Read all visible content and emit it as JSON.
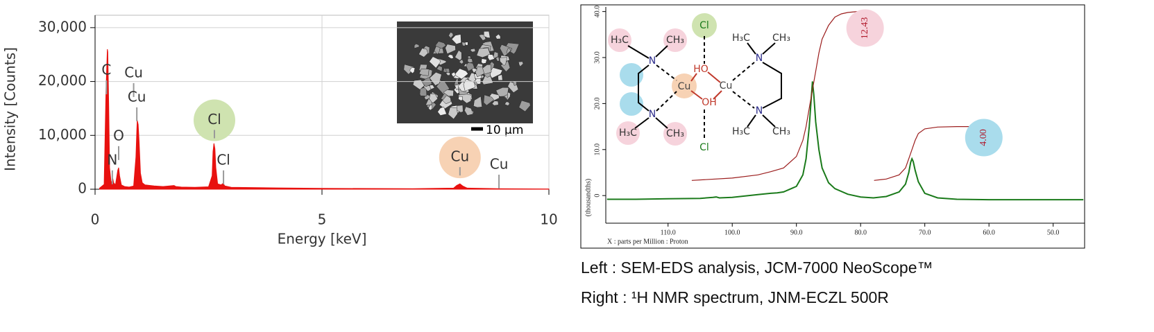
{
  "chart_data": [
    {
      "type": "area",
      "color": "#e8110f",
      "xlabel": "Energy [keV]",
      "ylabel": "Intensity [Counts]",
      "xlim": [
        0,
        10
      ],
      "ylim": [
        0,
        32300
      ],
      "xticks": [
        0,
        5,
        10
      ],
      "yticks": [
        0,
        {
          "value": 10000,
          "label": "10,000"
        },
        {
          "value": 20000,
          "label": "20,000"
        },
        {
          "value": 30000,
          "label": "30,000"
        }
      ],
      "grid": true,
      "x": [
        0.1,
        0.2,
        0.24,
        0.27,
        0.28,
        0.3,
        0.32,
        0.35,
        0.37,
        0.39,
        0.41,
        0.45,
        0.5,
        0.52,
        0.54,
        0.58,
        0.65,
        0.75,
        0.85,
        0.9,
        0.92,
        0.93,
        0.95,
        0.97,
        1.0,
        1.04,
        1.1,
        1.3,
        1.5,
        1.74,
        1.78,
        1.9,
        2.2,
        2.5,
        2.58,
        2.6,
        2.62,
        2.64,
        2.66,
        2.7,
        2.78,
        2.82,
        2.86,
        3.0,
        4.0,
        5.0,
        7.0,
        7.9,
        7.97,
        8.04,
        8.1,
        8.2,
        8.9,
        10.0
      ],
      "values": [
        200,
        900,
        18000,
        26000,
        25500,
        16000,
        4000,
        1500,
        1200,
        2000,
        1200,
        800,
        3500,
        4000,
        2500,
        800,
        500,
        400,
        600,
        6000,
        11000,
        12800,
        12000,
        9000,
        3000,
        1200,
        800,
        600,
        500,
        700,
        500,
        400,
        350,
        450,
        2500,
        7000,
        8500,
        7500,
        4000,
        1000,
        800,
        1100,
        600,
        350,
        250,
        150,
        100,
        200,
        700,
        1000,
        600,
        200,
        100,
        50
      ],
      "peak_labels": [
        {
          "label": "C",
          "x": 0.25,
          "y": 22000
        },
        {
          "label": "N",
          "x": 0.38,
          "y": 5300
        },
        {
          "label": "O",
          "x": 0.52,
          "y": 9800
        },
        {
          "label": "Cu",
          "x": 0.85,
          "y": 21500
        },
        {
          "label": "Cu",
          "x": 0.92,
          "y": 17000
        },
        {
          "label": "Cl",
          "x": 2.63,
          "y": 12800,
          "highlight": "#cfe3b0"
        },
        {
          "label": "Cl",
          "x": 2.83,
          "y": 5300
        },
        {
          "label": "Cu",
          "x": 8.04,
          "y": 5900,
          "highlight": "#f7d2b4"
        },
        {
          "label": "Cu",
          "x": 8.9,
          "y": 4500
        }
      ],
      "inset_scale_label": "10 µm"
    },
    {
      "type": "line",
      "xlabel": "X : parts per Million : Proton",
      "ylabel": "(thousandths)",
      "xlim": [
        119.7,
        45.1
      ],
      "ylim": [
        -6,
        41
      ],
      "xticks": [
        {
          "value": 110,
          "label": "110.0"
        },
        {
          "value": 100,
          "label": "100.0"
        },
        {
          "value": 90,
          "label": "90.0"
        },
        {
          "value": 80,
          "label": "80.0"
        },
        {
          "value": 70,
          "label": "70.0"
        },
        {
          "value": 60,
          "label": "60.0"
        },
        {
          "value": 50,
          "label": "50.0"
        }
      ],
      "yticks": [
        0,
        {
          "value": 10,
          "label": "10.0"
        },
        {
          "value": 20,
          "label": "20.0"
        },
        {
          "value": 30,
          "label": "30.0"
        },
        {
          "value": 40,
          "label": "40.0"
        }
      ],
      "grid": false,
      "series": [
        {
          "color": "#1a7a1a",
          "x": [
            119.5,
            115,
            110,
            105,
            103,
            102.5,
            102,
            100,
            96,
            94,
            93,
            92,
            90,
            89,
            88.5,
            88,
            87.7,
            87.5,
            87.3,
            87,
            86.5,
            86,
            85,
            84,
            82,
            80,
            78,
            76,
            74,
            73,
            72.5,
            72.2,
            72,
            71.8,
            71.5,
            71,
            70,
            68,
            65,
            60,
            55,
            50,
            45.3
          ],
          "values": [
            -0.8,
            -0.8,
            -0.7,
            -0.6,
            -0.4,
            -0.3,
            -0.5,
            -0.4,
            0.2,
            0.5,
            0.6,
            0.8,
            2.0,
            4.5,
            8,
            15,
            21,
            24.8,
            22,
            16,
            10,
            6,
            2.8,
            1.5,
            0.3,
            -0.3,
            -0.5,
            -0.2,
            0.8,
            2.5,
            5,
            7.2,
            8,
            7.4,
            5.5,
            3,
            0.5,
            -0.5,
            -0.8,
            -0.9,
            -0.9,
            -0.9,
            -0.9
          ]
        },
        {
          "color": "#9b1c1c",
          "x": [
            106.3,
            100,
            96,
            94,
            92,
            90,
            89,
            88.5,
            88,
            87.5,
            87,
            86.5,
            86,
            85,
            84,
            83,
            82,
            80.5
          ],
          "values": [
            3.3,
            3.8,
            4.5,
            5.2,
            6.0,
            8.5,
            12,
            15,
            19,
            23,
            27,
            31,
            34,
            37,
            38.8,
            39.5,
            39.8,
            40
          ]
        },
        {
          "color": "#9b1c1c",
          "x": [
            77.9,
            76,
            74,
            73,
            72.5,
            72,
            71.5,
            71,
            70,
            68,
            65,
            61
          ],
          "values": [
            3.3,
            3.6,
            4.5,
            6,
            8,
            10,
            12,
            13.5,
            14.5,
            14.9,
            15,
            15
          ]
        }
      ],
      "integral_labels": [
        {
          "label": "12.43",
          "x": 79.3,
          "y": 36.4,
          "highlight": "#f6d3dc"
        },
        {
          "label": "4.00",
          "x": 60.8,
          "y": 12.6,
          "highlight": "#a9dcec"
        }
      ],
      "molecule_labels": [
        "H₃C",
        "CH₃",
        "N",
        "Cl",
        "N",
        "H₃C",
        "CH₃",
        "Cu",
        "HO",
        "OH",
        "Cu",
        "Cl",
        "H₃C",
        "CH₃",
        "N",
        "N",
        "H₃C",
        "CH₃"
      ]
    }
  ],
  "caption": [
    "Left : SEM-EDS analysis, JCM-7000 NeoScope™",
    "Right : ¹H NMR spectrum, JNM-ECZL 500R"
  ]
}
